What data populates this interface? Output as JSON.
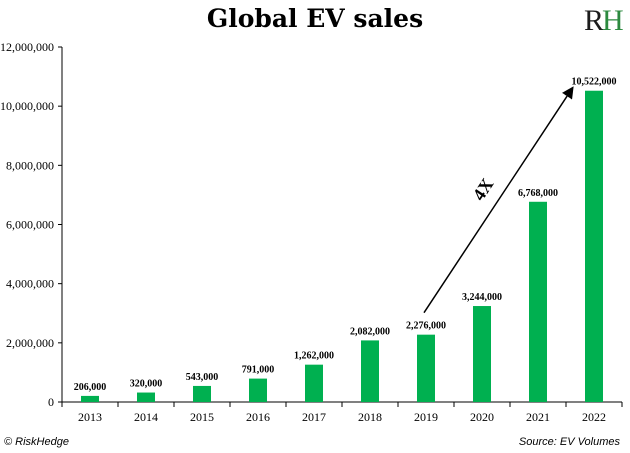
{
  "title": "Global EV sales",
  "logo": {
    "text": "RH",
    "letters": [
      "R",
      "H"
    ]
  },
  "footer": {
    "copyright": "© RiskHedge",
    "source": "Source: EV Volumes"
  },
  "colors": {
    "bar": "#00b050",
    "axis": "#000000"
  },
  "chart_data": {
    "type": "bar",
    "title": "Global EV sales",
    "categories": [
      "2013",
      "2014",
      "2015",
      "2016",
      "2017",
      "2018",
      "2019",
      "2020",
      "2021",
      "2022"
    ],
    "values": [
      206000,
      320000,
      543000,
      791000,
      1262000,
      2082000,
      2276000,
      3244000,
      6768000,
      10522000
    ],
    "data_labels": [
      "206,000",
      "320,000",
      "543,000",
      "791,000",
      "1,262,000",
      "2,082,000",
      "2,276,000",
      "3,244,000",
      "6,768,000",
      "10,522,000"
    ],
    "ylim": [
      0,
      12000000
    ],
    "yticks": [
      0,
      2000000,
      4000000,
      6000000,
      8000000,
      10000000,
      12000000
    ],
    "ytick_labels": [
      "0",
      "2,000,000",
      "4,000,000",
      "6,000,000",
      "8,000,000",
      "10,000,000",
      "12,000,000"
    ],
    "xlabel": "",
    "ylabel": "",
    "grid": false,
    "legend": "none",
    "annotation": {
      "text": "4X",
      "from_category": "2019",
      "to_category": "2022"
    }
  }
}
